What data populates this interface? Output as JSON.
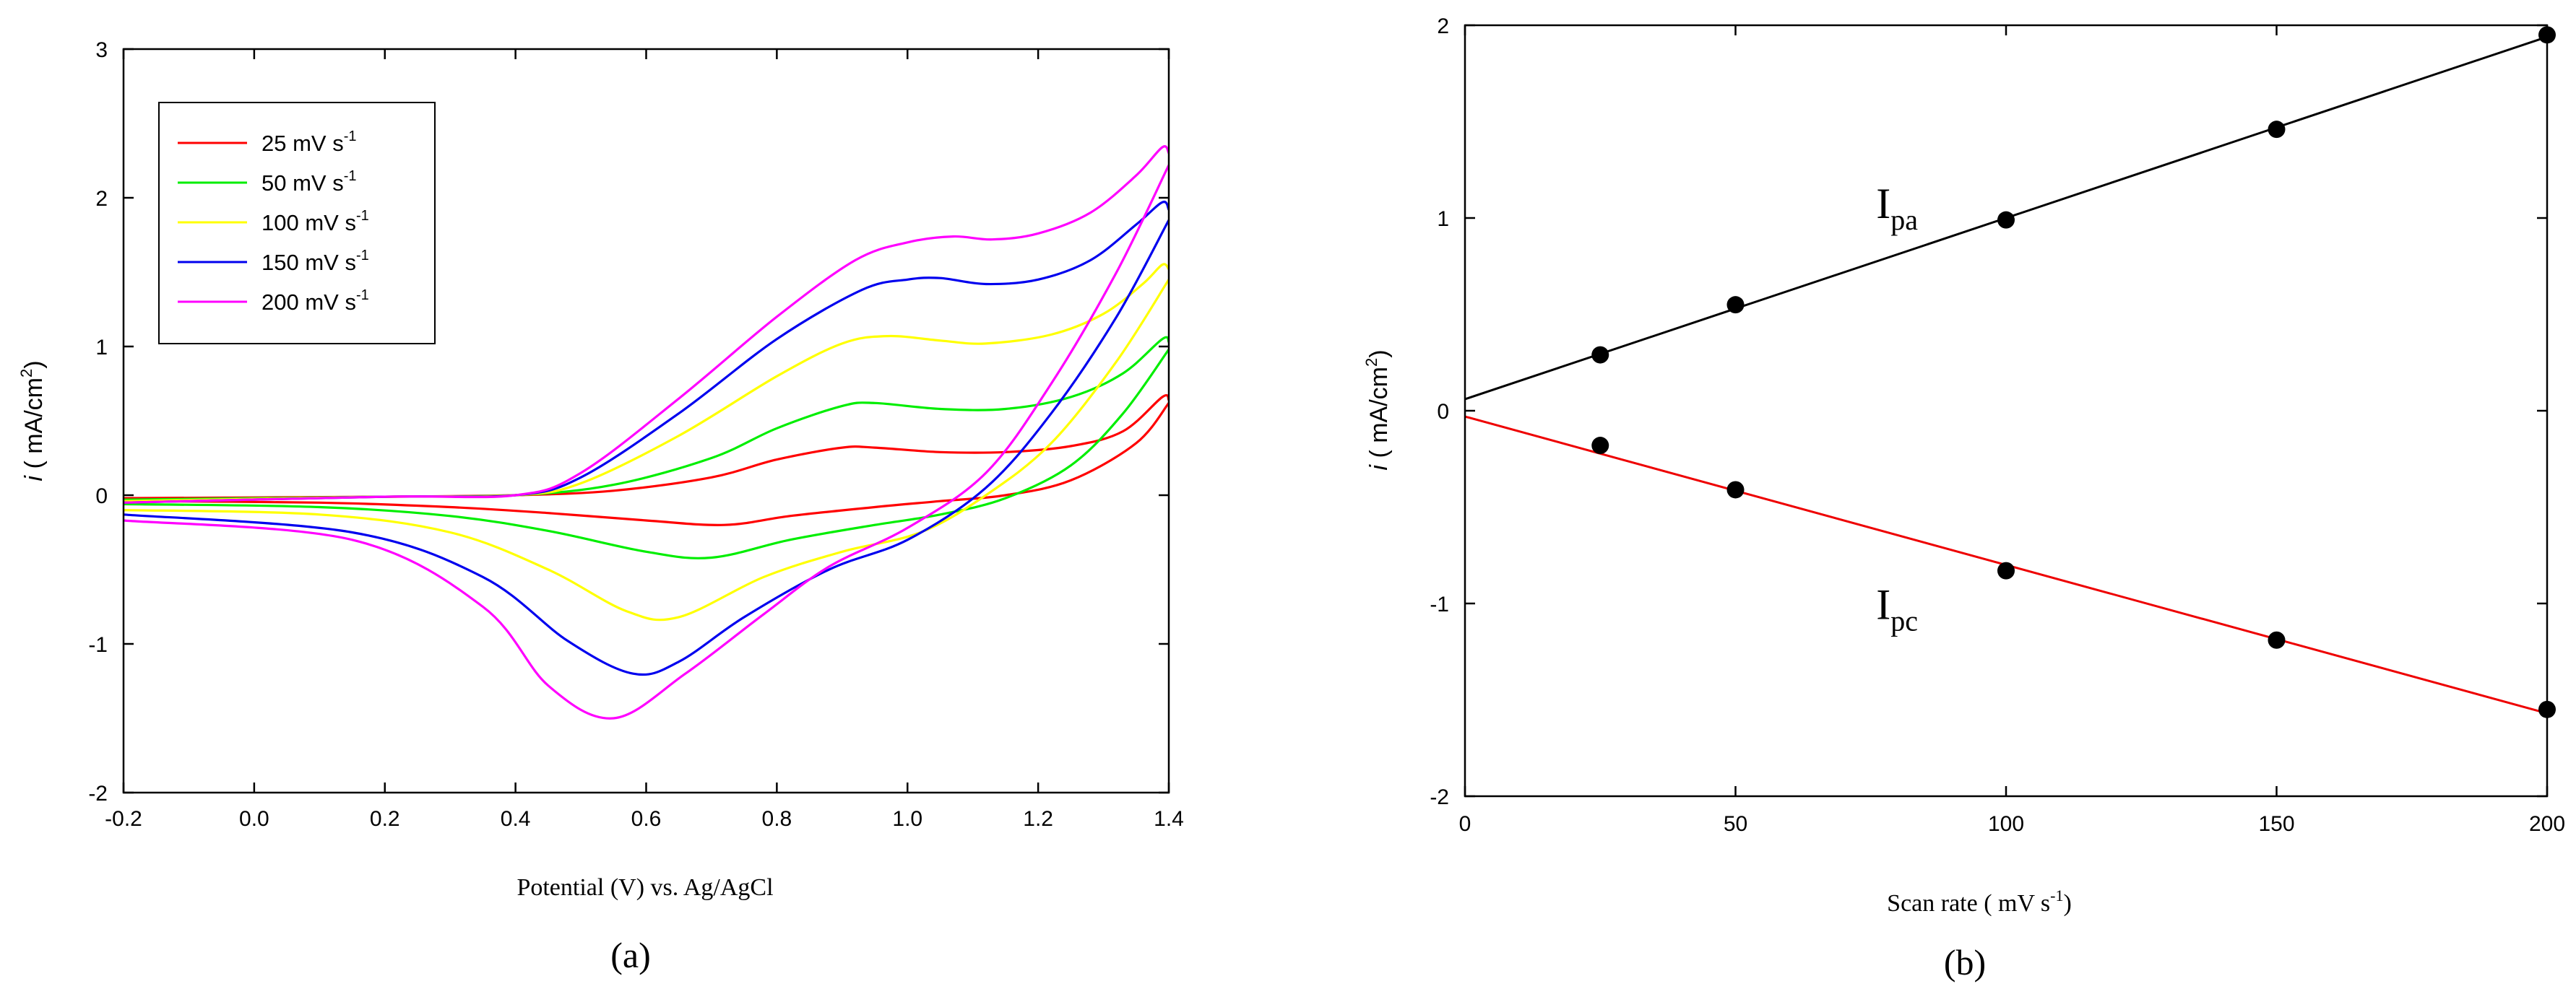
{
  "chart_data": [
    {
      "type": "line",
      "panel_label": "(a)",
      "xlabel": "Potential (V) vs. Ag/AgCl",
      "ylabel_italic": "i",
      "ylabel_rest": " ( mA/cm",
      "ylabel_sup": "2",
      "ylabel_close": ")",
      "xlim": [
        -0.2,
        1.4
      ],
      "ylim": [
        -2,
        3
      ],
      "xticks": [
        -0.2,
        0.0,
        0.2,
        0.4,
        0.6,
        0.8,
        1.0,
        1.2,
        1.4
      ],
      "xtick_labels": [
        "-0.2",
        "0.0",
        "0.2",
        "0.4",
        "0.6",
        "0.8",
        "1.0",
        "1.2",
        "1.4"
      ],
      "yticks": [
        -2,
        -1,
        0,
        1,
        2,
        3
      ],
      "ytick_labels": [
        "-2",
        "-1",
        "0",
        "1",
        "2",
        "3"
      ],
      "legend_position": "top-left",
      "series": [
        {
          "name": "25 mV s",
          "unit_sup": "-1",
          "color": "#ff0000",
          "forward": [
            [
              -0.2,
              -0.02
            ],
            [
              0.2,
              -0.01
            ],
            [
              0.4,
              0.0
            ],
            [
              0.55,
              0.03
            ],
            [
              0.7,
              0.12
            ],
            [
              0.8,
              0.24
            ],
            [
              0.9,
              0.32
            ],
            [
              0.95,
              0.32
            ],
            [
              1.05,
              0.29
            ],
            [
              1.15,
              0.29
            ],
            [
              1.25,
              0.33
            ],
            [
              1.33,
              0.43
            ],
            [
              1.39,
              0.66
            ],
            [
              1.4,
              0.64
            ]
          ],
          "reverse": [
            [
              1.4,
              0.62
            ],
            [
              1.35,
              0.35
            ],
            [
              1.25,
              0.1
            ],
            [
              1.15,
              0.0
            ],
            [
              1.05,
              -0.04
            ],
            [
              0.95,
              -0.08
            ],
            [
              0.82,
              -0.14
            ],
            [
              0.72,
              -0.2
            ],
            [
              0.6,
              -0.17
            ],
            [
              0.45,
              -0.12
            ],
            [
              0.3,
              -0.08
            ],
            [
              0.1,
              -0.05
            ],
            [
              -0.2,
              -0.04
            ]
          ]
        },
        {
          "name": "50 mV s",
          "unit_sup": "-1",
          "color": "#00ee00",
          "forward": [
            [
              -0.2,
              -0.03
            ],
            [
              0.2,
              -0.01
            ],
            [
              0.4,
              0.0
            ],
            [
              0.55,
              0.07
            ],
            [
              0.7,
              0.25
            ],
            [
              0.8,
              0.45
            ],
            [
              0.9,
              0.6
            ],
            [
              0.95,
              0.62
            ],
            [
              1.05,
              0.58
            ],
            [
              1.15,
              0.58
            ],
            [
              1.25,
              0.66
            ],
            [
              1.33,
              0.82
            ],
            [
              1.39,
              1.05
            ],
            [
              1.4,
              1.03
            ]
          ],
          "reverse": [
            [
              1.4,
              0.98
            ],
            [
              1.33,
              0.55
            ],
            [
              1.25,
              0.2
            ],
            [
              1.15,
              -0.02
            ],
            [
              1.05,
              -0.13
            ],
            [
              0.95,
              -0.2
            ],
            [
              0.82,
              -0.3
            ],
            [
              0.7,
              -0.42
            ],
            [
              0.6,
              -0.38
            ],
            [
              0.45,
              -0.24
            ],
            [
              0.3,
              -0.14
            ],
            [
              0.1,
              -0.08
            ],
            [
              -0.2,
              -0.06
            ]
          ]
        },
        {
          "name": "100 mV s",
          "unit_sup": "-1",
          "color": "#ffff00",
          "forward": [
            [
              -0.2,
              -0.04
            ],
            [
              0.2,
              -0.01
            ],
            [
              0.4,
              0.0
            ],
            [
              0.5,
              0.08
            ],
            [
              0.65,
              0.4
            ],
            [
              0.8,
              0.8
            ],
            [
              0.9,
              1.02
            ],
            [
              0.97,
              1.07
            ],
            [
              1.05,
              1.04
            ],
            [
              1.12,
              1.02
            ],
            [
              1.22,
              1.08
            ],
            [
              1.3,
              1.22
            ],
            [
              1.36,
              1.42
            ],
            [
              1.39,
              1.55
            ],
            [
              1.4,
              1.52
            ]
          ],
          "reverse": [
            [
              1.4,
              1.45
            ],
            [
              1.32,
              0.9
            ],
            [
              1.22,
              0.35
            ],
            [
              1.12,
              0.0
            ],
            [
              1.02,
              -0.25
            ],
            [
              0.9,
              -0.38
            ],
            [
              0.78,
              -0.55
            ],
            [
              0.65,
              -0.82
            ],
            [
              0.57,
              -0.78
            ],
            [
              0.45,
              -0.5
            ],
            [
              0.3,
              -0.25
            ],
            [
              0.1,
              -0.13
            ],
            [
              -0.2,
              -0.1
            ]
          ]
        },
        {
          "name": "150 mV s",
          "unit_sup": "-1",
          "color": "#0000ee",
          "forward": [
            [
              -0.2,
              -0.05
            ],
            [
              0.2,
              -0.01
            ],
            [
              0.4,
              0.0
            ],
            [
              0.5,
              0.12
            ],
            [
              0.65,
              0.55
            ],
            [
              0.8,
              1.05
            ],
            [
              0.93,
              1.38
            ],
            [
              1.0,
              1.45
            ],
            [
              1.05,
              1.46
            ],
            [
              1.12,
              1.42
            ],
            [
              1.2,
              1.45
            ],
            [
              1.28,
              1.58
            ],
            [
              1.35,
              1.82
            ],
            [
              1.39,
              1.97
            ],
            [
              1.4,
              1.92
            ]
          ],
          "reverse": [
            [
              1.4,
              1.85
            ],
            [
              1.32,
              1.2
            ],
            [
              1.22,
              0.55
            ],
            [
              1.12,
              0.05
            ],
            [
              1.0,
              -0.3
            ],
            [
              0.88,
              -0.5
            ],
            [
              0.75,
              -0.82
            ],
            [
              0.65,
              -1.12
            ],
            [
              0.58,
              -1.2
            ],
            [
              0.48,
              -0.98
            ],
            [
              0.35,
              -0.55
            ],
            [
              0.15,
              -0.25
            ],
            [
              -0.2,
              -0.13
            ]
          ]
        },
        {
          "name": "200 mV s",
          "unit_sup": "-1",
          "color": "#ff00ff",
          "forward": [
            [
              -0.2,
              -0.05
            ],
            [
              0.2,
              -0.01
            ],
            [
              0.4,
              0.0
            ],
            [
              0.5,
              0.15
            ],
            [
              0.65,
              0.65
            ],
            [
              0.8,
              1.2
            ],
            [
              0.92,
              1.58
            ],
            [
              1.0,
              1.7
            ],
            [
              1.07,
              1.74
            ],
            [
              1.13,
              1.72
            ],
            [
              1.2,
              1.76
            ],
            [
              1.28,
              1.9
            ],
            [
              1.35,
              2.15
            ],
            [
              1.39,
              2.34
            ],
            [
              1.4,
              2.3
            ]
          ],
          "reverse": [
            [
              1.4,
              2.22
            ],
            [
              1.32,
              1.5
            ],
            [
              1.22,
              0.75
            ],
            [
              1.12,
              0.15
            ],
            [
              1.0,
              -0.22
            ],
            [
              0.88,
              -0.48
            ],
            [
              0.78,
              -0.8
            ],
            [
              0.66,
              -1.2
            ],
            [
              0.55,
              -1.5
            ],
            [
              0.45,
              -1.28
            ],
            [
              0.35,
              -0.75
            ],
            [
              0.15,
              -0.3
            ],
            [
              -0.2,
              -0.17
            ]
          ]
        }
      ]
    },
    {
      "type": "scatter",
      "panel_label": "(b)",
      "xlabel": "Scan rate ( mV s",
      "xlabel_sup": "-1",
      "xlabel_close": ")",
      "ylabel_italic": "i",
      "ylabel_rest": " ( mA/cm",
      "ylabel_sup": "2",
      "ylabel_close": ")",
      "xlim": [
        0,
        200
      ],
      "ylim": [
        -2,
        2
      ],
      "xticks": [
        0,
        50,
        100,
        150,
        200
      ],
      "xtick_labels": [
        "0",
        "50",
        "100",
        "150",
        "200"
      ],
      "yticks": [
        -2,
        -1,
        0,
        1,
        2
      ],
      "ytick_labels": [
        "-2",
        "-1",
        "0",
        "1",
        "2"
      ],
      "series": [
        {
          "name": "Ipa",
          "label_main": "I",
          "label_sub": "pa",
          "color": "#000000",
          "x": [
            25,
            50,
            100,
            150,
            200
          ],
          "y": [
            0.29,
            0.55,
            0.99,
            1.46,
            1.95
          ],
          "fit": [
            [
              0,
              0.06
            ],
            [
              200,
              1.94
            ]
          ],
          "label_at": [
            76,
            1.0
          ]
        },
        {
          "name": "Ipc",
          "label_main": "I",
          "label_sub": "pc",
          "color": "#ee0000",
          "x": [
            25,
            50,
            100,
            150,
            200
          ],
          "y": [
            -0.18,
            -0.41,
            -0.83,
            -1.19,
            -1.55
          ],
          "fit": [
            [
              0,
              -0.03
            ],
            [
              200,
              -1.57
            ]
          ],
          "label_at": [
            76,
            -1.08
          ]
        }
      ]
    }
  ]
}
